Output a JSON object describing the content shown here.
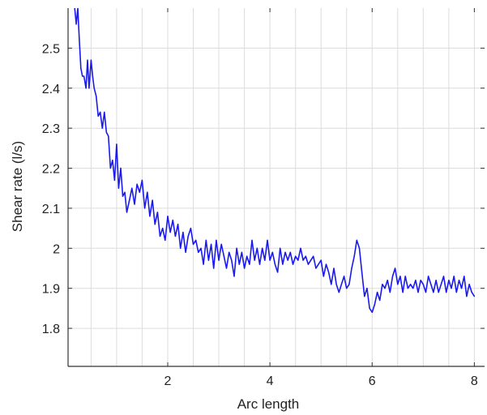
{
  "chart_data": {
    "type": "line",
    "title": "",
    "xlabel": "Arc length",
    "ylabel": "Shear rate (l/s)",
    "xlim": [
      0.05,
      8.2
    ],
    "ylim": [
      1.705,
      2.6
    ],
    "xticks": [
      2,
      4,
      6,
      8
    ],
    "xtick_labels": [
      "2",
      "4",
      "6",
      "8"
    ],
    "yticks": [
      1.8,
      1.9,
      2.0,
      2.1,
      2.2,
      2.3,
      2.4,
      2.5
    ],
    "ytick_labels": [
      "1.8",
      "1.9",
      "2",
      "2.1",
      "2.2",
      "2.3",
      "2.4",
      "2.5"
    ],
    "grid": true,
    "x_minor_step": 0.5,
    "series": [
      {
        "color": "#1a1aee",
        "x": [
          0.18,
          0.21,
          0.24,
          0.27,
          0.3,
          0.33,
          0.36,
          0.4,
          0.43,
          0.46,
          0.5,
          0.53,
          0.56,
          0.6,
          0.64,
          0.68,
          0.72,
          0.76,
          0.8,
          0.84,
          0.88,
          0.92,
          0.96,
          1.0,
          1.04,
          1.08,
          1.12,
          1.16,
          1.2,
          1.25,
          1.3,
          1.35,
          1.4,
          1.45,
          1.5,
          1.55,
          1.6,
          1.65,
          1.7,
          1.75,
          1.8,
          1.85,
          1.9,
          1.95,
          2.0,
          2.05,
          2.1,
          2.15,
          2.2,
          2.25,
          2.3,
          2.35,
          2.4,
          2.45,
          2.5,
          2.55,
          2.6,
          2.65,
          2.7,
          2.75,
          2.8,
          2.85,
          2.9,
          2.95,
          3.0,
          3.05,
          3.1,
          3.15,
          3.2,
          3.25,
          3.3,
          3.35,
          3.4,
          3.45,
          3.5,
          3.55,
          3.6,
          3.65,
          3.7,
          3.75,
          3.8,
          3.85,
          3.9,
          3.95,
          4.0,
          4.05,
          4.1,
          4.15,
          4.2,
          4.25,
          4.3,
          4.35,
          4.4,
          4.45,
          4.5,
          4.55,
          4.6,
          4.65,
          4.7,
          4.75,
          4.8,
          4.85,
          4.9,
          4.95,
          5.0,
          5.05,
          5.1,
          5.15,
          5.2,
          5.25,
          5.3,
          5.35,
          5.4,
          5.45,
          5.5,
          5.55,
          5.6,
          5.65,
          5.7,
          5.75,
          5.8,
          5.85,
          5.9,
          5.95,
          6.0,
          6.05,
          6.1,
          6.15,
          6.2,
          6.25,
          6.3,
          6.35,
          6.4,
          6.45,
          6.5,
          6.55,
          6.6,
          6.65,
          6.7,
          6.75,
          6.8,
          6.85,
          6.9,
          6.95,
          7.0,
          7.05,
          7.1,
          7.15,
          7.2,
          7.25,
          7.3,
          7.35,
          7.4,
          7.45,
          7.5,
          7.55,
          7.6,
          7.65,
          7.7,
          7.75,
          7.8,
          7.85,
          7.9,
          7.95,
          8.0
        ],
        "y": [
          2.6,
          2.56,
          2.6,
          2.52,
          2.45,
          2.43,
          2.43,
          2.4,
          2.47,
          2.4,
          2.47,
          2.43,
          2.4,
          2.38,
          2.33,
          2.34,
          2.3,
          2.34,
          2.29,
          2.28,
          2.2,
          2.22,
          2.17,
          2.26,
          2.15,
          2.2,
          2.13,
          2.14,
          2.09,
          2.12,
          2.15,
          2.11,
          2.16,
          2.14,
          2.17,
          2.1,
          2.14,
          2.08,
          2.12,
          2.06,
          2.09,
          2.03,
          2.05,
          2.02,
          2.08,
          2.04,
          2.07,
          2.03,
          2.06,
          2.0,
          2.04,
          1.99,
          2.03,
          2.05,
          2.01,
          2.02,
          1.99,
          2.0,
          1.96,
          2.02,
          1.97,
          2.01,
          1.95,
          2.02,
          1.97,
          2.01,
          1.98,
          1.95,
          1.99,
          1.97,
          1.93,
          2.0,
          1.96,
          1.99,
          1.95,
          1.98,
          1.96,
          2.02,
          1.97,
          2.0,
          1.96,
          2.0,
          1.97,
          2.02,
          1.97,
          1.99,
          1.96,
          1.94,
          2.0,
          1.96,
          1.99,
          1.97,
          1.99,
          1.96,
          1.98,
          1.97,
          2.0,
          1.97,
          1.98,
          1.96,
          1.97,
          1.98,
          1.95,
          1.96,
          1.97,
          1.93,
          1.96,
          1.94,
          1.91,
          1.95,
          1.91,
          1.89,
          1.91,
          1.93,
          1.9,
          1.91,
          1.95,
          1.98,
          2.02,
          2.0,
          1.94,
          1.88,
          1.9,
          1.85,
          1.84,
          1.86,
          1.89,
          1.87,
          1.91,
          1.9,
          1.92,
          1.89,
          1.93,
          1.95,
          1.91,
          1.93,
          1.89,
          1.93,
          1.9,
          1.91,
          1.9,
          1.92,
          1.89,
          1.92,
          1.91,
          1.89,
          1.93,
          1.91,
          1.89,
          1.92,
          1.89,
          1.91,
          1.93,
          1.89,
          1.92,
          1.9,
          1.93,
          1.89,
          1.92,
          1.9,
          1.93,
          1.88,
          1.91,
          1.89,
          1.88
        ]
      }
    ]
  },
  "colors": {
    "line": "#1a1aee",
    "grid": "#dcdcdc",
    "axis": "#333333",
    "text": "#222222",
    "background": "#ffffff"
  }
}
